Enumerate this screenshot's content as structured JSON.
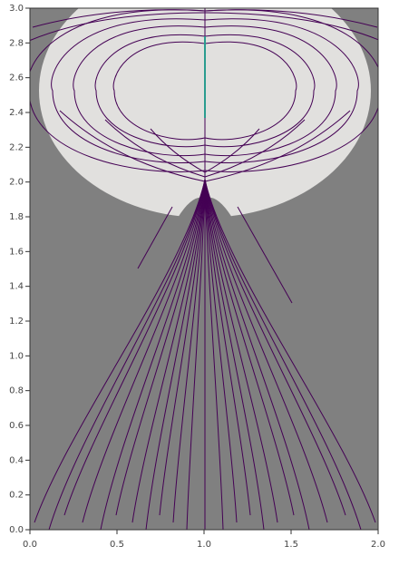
{
  "chart_data": {
    "type": "streamline",
    "xlim": [
      0,
      2
    ],
    "ylim": [
      0,
      3
    ],
    "xticks": [
      {
        "value": 0,
        "label": "0.0"
      },
      {
        "value": 0.5,
        "label": "0.5"
      },
      {
        "value": 1,
        "label": "1.0"
      },
      {
        "value": 1.5,
        "label": "1.5"
      },
      {
        "value": 2,
        "label": "2.0"
      }
    ],
    "yticks": [
      {
        "value": 0,
        "label": "0.0"
      },
      {
        "value": 0.2,
        "label": "0.2"
      },
      {
        "value": 0.4,
        "label": "0.4"
      },
      {
        "value": 0.6,
        "label": "0.6"
      },
      {
        "value": 0.8,
        "label": "0.8"
      },
      {
        "value": 1,
        "label": "1.0"
      },
      {
        "value": 1.2,
        "label": "1.2"
      },
      {
        "value": 1.4,
        "label": "1.4"
      },
      {
        "value": 1.6,
        "label": "1.6"
      },
      {
        "value": 1.8,
        "label": "1.8"
      },
      {
        "value": 2,
        "label": "2.0"
      },
      {
        "value": 2.2,
        "label": "2.2"
      },
      {
        "value": 2.4,
        "label": "2.4"
      },
      {
        "value": 2.6,
        "label": "2.6"
      },
      {
        "value": 2.8,
        "label": "2.8"
      },
      {
        "value": 3,
        "label": "3.0"
      }
    ]
  }
}
